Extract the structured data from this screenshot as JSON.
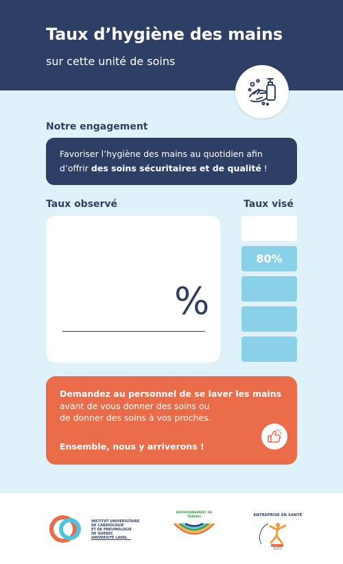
{
  "header": {
    "title": "Taux d’hygiène des mains",
    "subtitle": "sur cette unité de soins",
    "icon": "hand-washing-icon"
  },
  "engagement": {
    "label": "Notre engagement",
    "text_line1": "Favoriser l’hygiène des mains au quotidien afin",
    "text_line2_prefix": "d’offrir ",
    "text_line2_bold": "des soins sécuritaires et de qualité",
    "text_line2_suffix": " !"
  },
  "observed": {
    "label": "Taux observé",
    "percent_symbol": "%"
  },
  "target": {
    "label": "Taux visé",
    "value": "80%",
    "level_fraction": 0.8
  },
  "cta": {
    "line1": "Demandez au personnel de se laver les mains",
    "line2": "avant de vous donner des soins ou",
    "line3": "de donner des soins à vos proches.",
    "closing": "Ensemble, nous y arriverons !",
    "icon": "thumbs-up-icon"
  },
  "footer": {
    "logo1_text": "INSTITUT UNIVERSITAIRE\nDE CARDIOLOGIE\nET DE PNEUMOLOGIE\nDE QUÉBEC\nUNIVERSITÉ LAVAL",
    "logo2_text": "ENVIRONNEMENT DE TRAVAIL",
    "logo3_text": "ENTREPRISE EN SANTÉ",
    "logo3_sub": "ÉLITE"
  },
  "colors": {
    "navy": "#2e3f66",
    "light_blue_bg": "#dff2f9",
    "bar_blue": "#88d1e8",
    "coral": "#e96b48"
  }
}
